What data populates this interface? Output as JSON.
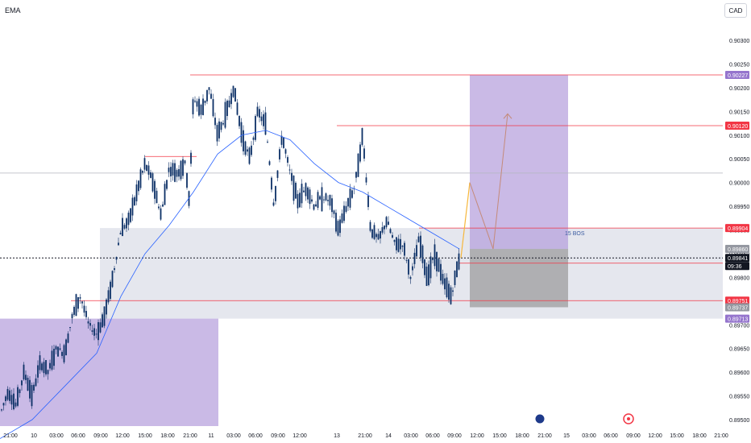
{
  "indicator_label": "EMA",
  "currency": "CAD",
  "colors": {
    "zone_purple": "#b39ddb",
    "zone_grey": "#d1d4dc",
    "level_red": "#f23645",
    "ema_blue": "#2962ff",
    "candle": "#0c3066",
    "projection": "#ff9800",
    "axis_text": "#131722"
  },
  "chart_data": {
    "type": "candlestick",
    "instrument_currency": "CAD",
    "ylim": [
      0.8948,
      0.9033
    ],
    "y_ticks": [
      "0.89500",
      "0.89550",
      "0.89600",
      "0.89650",
      "0.89700",
      "0.89750",
      "0.89800",
      "0.89850",
      "0.89900",
      "0.89950",
      "0.90000",
      "0.90050",
      "0.90100",
      "0.90150",
      "0.90200",
      "0.90250",
      "0.90300"
    ],
    "x_ticks": [
      "21:00",
      "10",
      "03:00",
      "06:00",
      "09:00",
      "12:00",
      "15:00",
      "18:00",
      "21:00",
      "11",
      "03:00",
      "06:00",
      "09:00",
      "12:00",
      "13",
      "21:00",
      "14",
      "03:00",
      "06:00",
      "09:00",
      "12:00",
      "15:00",
      "18:00",
      "21:00",
      "15",
      "03:00",
      "06:00",
      "09:00",
      "12:00",
      "15:00",
      "18:00",
      "21:00"
    ],
    "price_labels": [
      {
        "value": "0.90227",
        "kind": "purple"
      },
      {
        "value": "0.90120",
        "kind": "red"
      },
      {
        "value": "0.89904",
        "kind": "red"
      },
      {
        "value": "0.89860",
        "kind": "grey"
      },
      {
        "value": "0.89841",
        "kind": "dark"
      },
      {
        "value": "09:36",
        "kind": "dark-sub"
      },
      {
        "value": "0.89751",
        "kind": "red"
      },
      {
        "value": "0.89737",
        "kind": "grey"
      },
      {
        "value": "0.89713",
        "kind": "purple"
      }
    ],
    "horizontal_levels": [
      0.90227,
      0.9012,
      0.9002,
      0.89904,
      0.8983,
      0.89751
    ],
    "current_price": 0.89841,
    "annotation": "15 BOS",
    "price_path": [
      [
        0,
        0.8951
      ],
      [
        10,
        0.8956
      ],
      [
        20,
        0.8953
      ],
      [
        30,
        0.896
      ],
      [
        40,
        0.8955
      ],
      [
        50,
        0.8962
      ],
      [
        60,
        0.896
      ],
      [
        70,
        0.8965
      ],
      [
        80,
        0.8964
      ],
      [
        90,
        0.8972
      ],
      [
        100,
        0.8976
      ],
      [
        110,
        0.897
      ],
      [
        120,
        0.8968
      ],
      [
        130,
        0.8972
      ],
      [
        140,
        0.898
      ],
      [
        150,
        0.899
      ],
      [
        160,
        0.8992
      ],
      [
        170,
        0.8998
      ],
      [
        180,
        0.9004
      ],
      [
        190,
        0.9
      ],
      [
        200,
        0.8993
      ],
      [
        210,
        0.9003
      ],
      [
        220,
        0.9002
      ],
      [
        230,
        0.9004
      ],
      [
        235,
        0.8996
      ],
      [
        240,
        0.9018
      ],
      [
        250,
        0.9015
      ],
      [
        260,
        0.902
      ],
      [
        270,
        0.901
      ],
      [
        280,
        0.9014
      ],
      [
        290,
        0.902
      ],
      [
        300,
        0.901
      ],
      [
        310,
        0.9005
      ],
      [
        320,
        0.9015
      ],
      [
        330,
        0.9012
      ],
      [
        340,
        0.8995
      ],
      [
        350,
        0.901
      ],
      [
        360,
        0.9002
      ],
      [
        370,
        0.8996
      ],
      [
        380,
        0.8999
      ],
      [
        390,
        0.8995
      ],
      [
        400,
        0.8997
      ],
      [
        410,
        0.8996
      ],
      [
        420,
        0.899
      ],
      [
        430,
        0.8995
      ],
      [
        440,
        0.8999
      ],
      [
        450,
        0.901
      ],
      [
        460,
        0.899
      ],
      [
        470,
        0.8988
      ],
      [
        480,
        0.8992
      ],
      [
        490,
        0.8987
      ],
      [
        500,
        0.8987
      ],
      [
        510,
        0.898
      ],
      [
        520,
        0.8988
      ],
      [
        530,
        0.898
      ],
      [
        540,
        0.8985
      ],
      [
        550,
        0.8979
      ],
      [
        560,
        0.8976
      ],
      [
        570,
        0.8984
      ]
    ],
    "ema": [
      [
        0,
        0.8946
      ],
      [
        40,
        0.895
      ],
      [
        80,
        0.8957
      ],
      [
        120,
        0.8964
      ],
      [
        150,
        0.8976
      ],
      [
        180,
        0.8985
      ],
      [
        210,
        0.8991
      ],
      [
        240,
        0.8998
      ],
      [
        270,
        0.9006
      ],
      [
        300,
        0.901
      ],
      [
        330,
        0.9011
      ],
      [
        360,
        0.9009
      ],
      [
        390,
        0.9004
      ],
      [
        420,
        0.9
      ],
      [
        450,
        0.8998
      ],
      [
        480,
        0.8995
      ],
      [
        510,
        0.8992
      ],
      [
        540,
        0.8989
      ],
      [
        570,
        0.8986
      ]
    ],
    "projection_path": [
      [
        572,
        0.89841
      ],
      [
        583,
        0.9
      ],
      [
        612,
        0.8986
      ],
      [
        630,
        0.90145
      ]
    ]
  }
}
